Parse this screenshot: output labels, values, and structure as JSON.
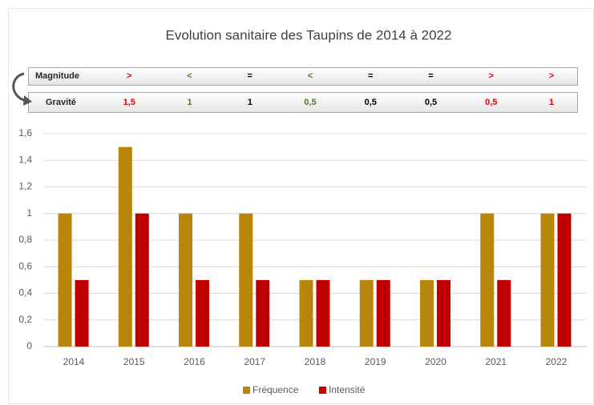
{
  "chart_data": {
    "type": "bar",
    "title": "Evolution sanitaire des Taupins de 2014 à 2022",
    "categories": [
      "2014",
      "2015",
      "2016",
      "2017",
      "2018",
      "2019",
      "2020",
      "2021",
      "2022"
    ],
    "series": [
      {
        "name": "Fréquence",
        "color": "#b8860b",
        "values": [
          1,
          1.5,
          1,
          1,
          0.5,
          0.5,
          0.5,
          1,
          1
        ]
      },
      {
        "name": "Intensité",
        "color": "#c00000",
        "values": [
          0.5,
          1,
          0.5,
          0.5,
          0.5,
          0.5,
          0.5,
          0.5,
          1
        ]
      }
    ],
    "ylim": [
      0,
      1.6
    ],
    "yticks": [
      0,
      {
        "value": 0.2,
        "label": "0,2"
      },
      {
        "value": 0.4,
        "label": "0,4"
      },
      {
        "value": 0.6,
        "label": "0,6"
      },
      {
        "value": 0.8,
        "label": "0,8"
      },
      1,
      {
        "value": 1.2,
        "label": "1,2"
      },
      {
        "value": 1.4,
        "label": "1,4"
      },
      {
        "value": 1.6,
        "label": "1,6"
      }
    ],
    "grid": true,
    "legend": "bottom"
  },
  "table": {
    "rows": [
      {
        "label": "Magnitude",
        "cells": [
          ">",
          "<",
          "=",
          "<",
          "=",
          "=",
          ">",
          ">"
        ],
        "colors": [
          "#e00000",
          "#4e7a2a",
          "#000000",
          "#4e7a2a",
          "#000000",
          "#000000",
          "#e00000",
          "#e00000"
        ]
      },
      {
        "label": "Gravité",
        "cells": [
          "1,5",
          "1",
          "1",
          "0,5",
          "0,5",
          "0,5",
          "0,5",
          "1"
        ],
        "colors": [
          "#e00000",
          "#4e7a2a",
          "#000000",
          "#4e7a2a",
          "#000000",
          "#000000",
          "#e00000",
          "#e00000"
        ]
      }
    ]
  }
}
